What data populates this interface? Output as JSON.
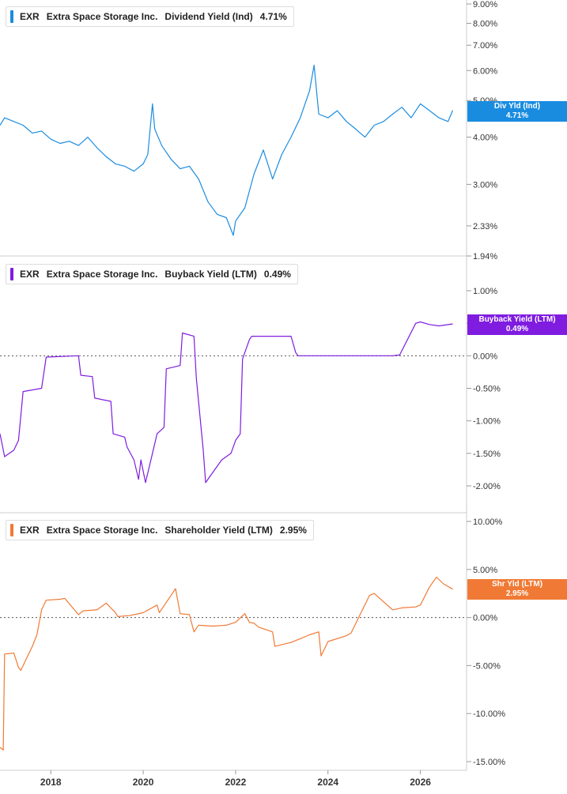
{
  "chart_data": [
    {
      "type": "line",
      "ticker": "EXR",
      "company": "Extra Space Storage Inc.",
      "metric": "Dividend Yield (Ind)",
      "current_value": "4.71%",
      "tag_line1": "Div Yld (Ind)",
      "tag_line2": "4.71%",
      "color": "#1a8ce0",
      "scale": "log",
      "ylim": [
        1.94,
        9.0
      ],
      "y_ticks": [
        "9.00%",
        "8.00%",
        "7.00%",
        "6.00%",
        "5.00%",
        "4.00%",
        "3.00%",
        "2.33%",
        "1.94%"
      ],
      "y_tick_values": [
        9.0,
        8.0,
        7.0,
        6.0,
        5.0,
        4.0,
        3.0,
        2.33,
        1.94
      ],
      "series": [
        {
          "x": [
            2016.9,
            2017.0,
            2017.2,
            2017.4,
            2017.6,
            2017.8,
            2018.0,
            2018.2,
            2018.4,
            2018.6,
            2018.8,
            2019.0,
            2019.2,
            2019.4,
            2019.6,
            2019.8,
            2020.0,
            2020.1,
            2020.2,
            2020.25,
            2020.4,
            2020.6,
            2020.8,
            2021.0,
            2021.2,
            2021.4,
            2021.6,
            2021.8,
            2021.95,
            2022.0,
            2022.2,
            2022.4,
            2022.6,
            2022.8,
            2023.0,
            2023.2,
            2023.4,
            2023.6,
            2023.7,
            2023.8,
            2024.0,
            2024.2,
            2024.4,
            2024.6,
            2024.8,
            2025.0,
            2025.2,
            2025.4,
            2025.6,
            2025.8,
            2026.0,
            2026.2,
            2026.4,
            2026.6,
            2026.7
          ],
          "values": [
            4.3,
            4.5,
            4.4,
            4.3,
            4.1,
            4.15,
            3.95,
            3.85,
            3.9,
            3.8,
            4.0,
            3.75,
            3.55,
            3.4,
            3.35,
            3.25,
            3.4,
            3.6,
            4.9,
            4.2,
            3.8,
            3.5,
            3.3,
            3.35,
            3.1,
            2.7,
            2.5,
            2.45,
            2.2,
            2.4,
            2.6,
            3.2,
            3.7,
            3.1,
            3.6,
            4.0,
            4.5,
            5.3,
            6.2,
            4.6,
            4.5,
            4.7,
            4.4,
            4.2,
            4.0,
            4.3,
            4.4,
            4.6,
            4.8,
            4.5,
            4.9,
            4.7,
            4.5,
            4.4,
            4.71
          ]
        }
      ]
    },
    {
      "type": "line",
      "ticker": "EXR",
      "company": "Extra Space Storage Inc.",
      "metric": "Buyback Yield (LTM)",
      "current_value": "0.49%",
      "tag_line1": "Buyback Yield (LTM)",
      "tag_line2": "0.49%",
      "color": "#7f1ce0",
      "ylim": [
        -2.0,
        1.0
      ],
      "y_ticks": [
        "1.00%",
        "0.50%",
        "0.00%",
        "-0.50%",
        "-1.00%",
        "-1.50%",
        "-2.00%"
      ],
      "y_tick_values": [
        1.0,
        0.5,
        0.0,
        -0.5,
        -1.0,
        -1.5,
        -2.0
      ],
      "series": [
        {
          "x": [
            2016.9,
            2017.0,
            2017.2,
            2017.3,
            2017.4,
            2017.8,
            2017.9,
            2018.6,
            2018.65,
            2018.9,
            2018.95,
            2019.3,
            2019.35,
            2019.6,
            2019.65,
            2019.8,
            2019.9,
            2019.95,
            2020.05,
            2020.2,
            2020.3,
            2020.45,
            2020.5,
            2020.8,
            2020.85,
            2021.1,
            2021.15,
            2021.3,
            2021.35,
            2021.5,
            2021.7,
            2021.9,
            2022.0,
            2022.1,
            2022.15,
            2022.3,
            2022.35,
            2023.2,
            2023.3,
            2023.35,
            2025.4,
            2025.5,
            2025.55,
            2025.9,
            2026.0,
            2026.2,
            2026.4,
            2026.7
          ],
          "values": [
            -1.2,
            -1.55,
            -1.45,
            -1.3,
            -0.55,
            -0.5,
            -0.02,
            0.0,
            -0.3,
            -0.32,
            -0.65,
            -0.7,
            -1.2,
            -1.25,
            -1.4,
            -1.6,
            -1.9,
            -1.6,
            -1.95,
            -1.5,
            -1.2,
            -1.1,
            -0.2,
            -0.15,
            0.35,
            0.3,
            -0.35,
            -1.45,
            -1.95,
            -1.8,
            -1.6,
            -1.5,
            -1.3,
            -1.2,
            -0.05,
            0.25,
            0.3,
            0.3,
            0.05,
            0.0,
            0.0,
            0.01,
            0.01,
            0.5,
            0.52,
            0.48,
            0.46,
            0.49
          ]
        }
      ]
    },
    {
      "type": "line",
      "ticker": "EXR",
      "company": "Extra Space Storage Inc.",
      "metric": "Shareholder Yield (LTM)",
      "current_value": "2.95%",
      "tag_line1": "Shr Yld (LTM)",
      "tag_line2": "2.95%",
      "color": "#f07a35",
      "ylim": [
        -15.0,
        10.0
      ],
      "y_ticks": [
        "10.00%",
        "5.00%",
        "0.00%",
        "-5.00%",
        "-10.00%",
        "-15.00%"
      ],
      "y_tick_values": [
        10.0,
        5.0,
        0.0,
        -5.0,
        -10.0,
        -15.0
      ],
      "series": [
        {
          "x": [
            2016.9,
            2016.97,
            2017.0,
            2017.2,
            2017.3,
            2017.35,
            2017.6,
            2017.7,
            2017.8,
            2017.9,
            2018.2,
            2018.3,
            2018.6,
            2018.7,
            2019.0,
            2019.2,
            2019.4,
            2019.45,
            2019.7,
            2019.8,
            2020.0,
            2020.3,
            2020.35,
            2020.7,
            2020.8,
            2021.0,
            2021.1,
            2021.2,
            2021.5,
            2021.8,
            2022.0,
            2022.2,
            2022.3,
            2022.4,
            2022.5,
            2022.8,
            2022.85,
            2023.2,
            2023.4,
            2023.6,
            2023.8,
            2023.85,
            2024.0,
            2024.4,
            2024.5,
            2024.9,
            2025.0,
            2025.4,
            2025.6,
            2025.9,
            2026.0,
            2026.2,
            2026.35,
            2026.5,
            2026.7
          ],
          "values": [
            -13.5,
            -13.8,
            -3.8,
            -3.7,
            -5.2,
            -5.5,
            -3.0,
            -1.8,
            0.8,
            1.8,
            1.9,
            2.0,
            0.3,
            0.7,
            0.8,
            1.5,
            0.5,
            0.1,
            0.2,
            0.3,
            0.5,
            1.3,
            0.5,
            3.0,
            0.4,
            0.3,
            -1.5,
            -0.8,
            -0.9,
            -0.8,
            -0.5,
            0.4,
            -0.5,
            -0.6,
            -1.0,
            -1.5,
            -3.0,
            -2.6,
            -2.2,
            -1.8,
            -1.5,
            -4.0,
            -2.5,
            -1.9,
            -1.6,
            2.3,
            2.5,
            0.8,
            1.0,
            1.1,
            1.3,
            3.2,
            4.2,
            3.5,
            2.95
          ]
        }
      ]
    }
  ],
  "x_axis": {
    "ticks": [
      "2018",
      "2020",
      "2022",
      "2024",
      "2026"
    ],
    "tick_values": [
      2018,
      2020,
      2022,
      2024,
      2026
    ],
    "xlim": [
      2016.9,
      2027.0
    ]
  }
}
